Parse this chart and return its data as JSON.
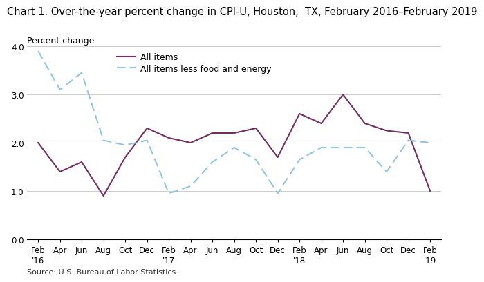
{
  "title": "Chart 1. Over-the-year percent change in CPI-U, Houston,  TX, February 2016–February 2019",
  "ylabel": "Percent change",
  "source": "Source: U.S. Bureau of Labor Statistics.",
  "ylim": [
    0.0,
    4.0
  ],
  "yticks": [
    0.0,
    1.0,
    2.0,
    3.0,
    4.0
  ],
  "x_labels_line1": [
    "Feb",
    "Apr",
    "Jun",
    "Aug",
    "Oct",
    "Dec",
    "Feb",
    "Apr",
    "Jun",
    "Aug",
    "Oct",
    "Dec",
    "Feb",
    "Apr",
    "Jun",
    "Aug",
    "Oct",
    "Dec",
    "Feb"
  ],
  "x_labels_line2": [
    "'16",
    "",
    "",
    "",
    "",
    "",
    "'17",
    "",
    "",
    "",
    "",
    "",
    "'18",
    "",
    "",
    "",
    "",
    "",
    "'19"
  ],
  "all_items": [
    2.0,
    1.4,
    1.6,
    0.9,
    1.7,
    2.3,
    2.1,
    2.0,
    2.2,
    2.2,
    2.3,
    1.7,
    2.6,
    2.4,
    3.0,
    2.4,
    2.25,
    2.2,
    1.0
  ],
  "all_items_less": [
    3.9,
    3.1,
    3.45,
    2.05,
    1.95,
    2.05,
    0.95,
    1.1,
    1.6,
    1.9,
    1.65,
    0.95,
    1.65,
    1.9,
    1.9,
    1.9,
    1.4,
    2.05,
    2.0
  ],
  "all_items_color": "#722F60",
  "all_items_less_color": "#92C5DE",
  "legend_labels": [
    "All items",
    "All items less food and energy"
  ],
  "title_fontsize": 10.5,
  "label_fontsize": 9,
  "tick_fontsize": 8.5
}
